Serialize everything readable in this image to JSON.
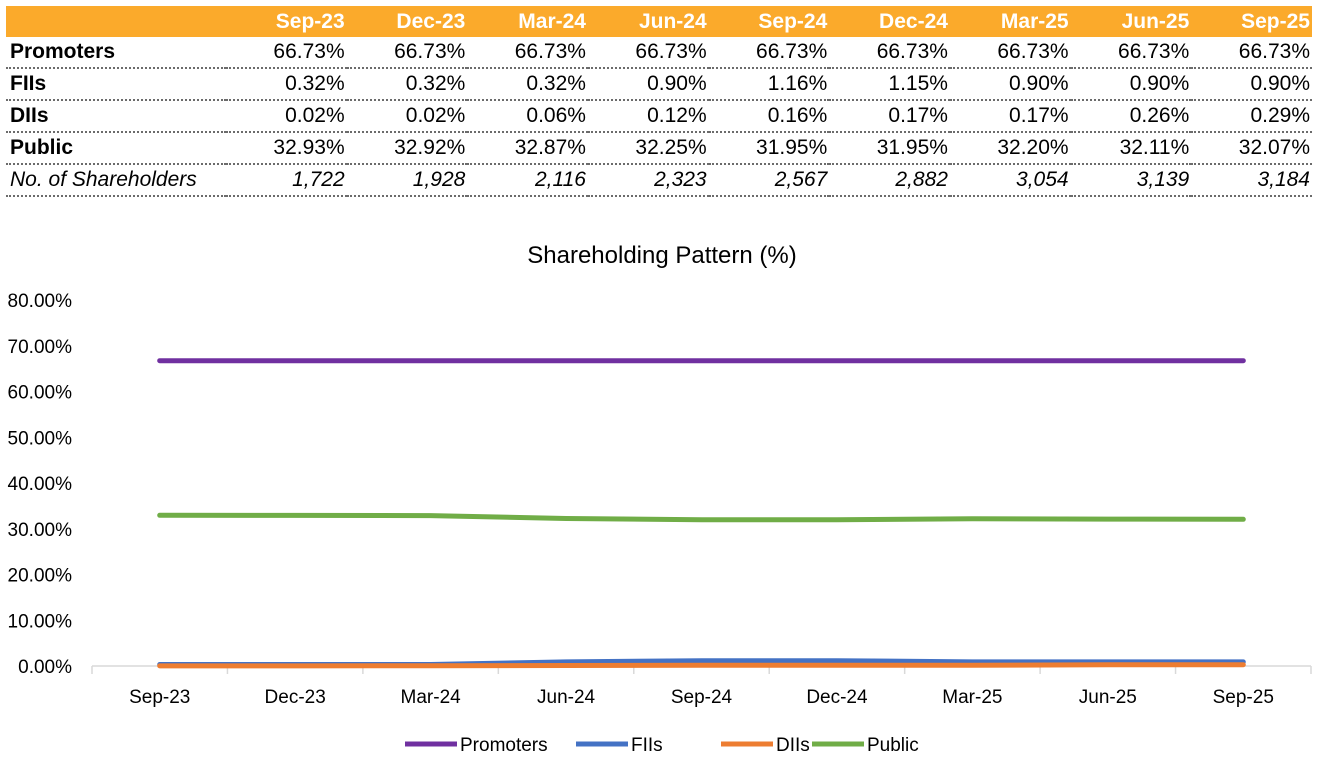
{
  "table": {
    "columns": [
      "Sep-23",
      "Dec-23",
      "Mar-24",
      "Jun-24",
      "Sep-24",
      "Dec-24",
      "Mar-25",
      "Jun-25",
      "Sep-25"
    ],
    "rows": [
      {
        "label": "Promoters",
        "values": [
          "66.73%",
          "66.73%",
          "66.73%",
          "66.73%",
          "66.73%",
          "66.73%",
          "66.73%",
          "66.73%",
          "66.73%"
        ],
        "italic": false
      },
      {
        "label": "FIIs",
        "values": [
          "0.32%",
          "0.32%",
          "0.32%",
          "0.90%",
          "1.16%",
          "1.15%",
          "0.90%",
          "0.90%",
          "0.90%"
        ],
        "italic": false
      },
      {
        "label": "DIIs",
        "values": [
          "0.02%",
          "0.02%",
          "0.06%",
          "0.12%",
          "0.16%",
          "0.17%",
          "0.17%",
          "0.26%",
          "0.29%"
        ],
        "italic": false
      },
      {
        "label": "Public",
        "values": [
          "32.93%",
          "32.92%",
          "32.87%",
          "32.25%",
          "31.95%",
          "31.95%",
          "32.20%",
          "32.11%",
          "32.07%"
        ],
        "italic": false
      },
      {
        "label": "No. of Shareholders",
        "values": [
          "1,722",
          "1,928",
          "2,116",
          "2,323",
          "2,567",
          "2,882",
          "3,054",
          "3,139",
          "3,184"
        ],
        "italic": true
      }
    ]
  },
  "chart_data": {
    "type": "line",
    "title": "Shareholding Pattern (%)",
    "categories": [
      "Sep-23",
      "Dec-23",
      "Mar-24",
      "Jun-24",
      "Sep-24",
      "Dec-24",
      "Mar-25",
      "Jun-25",
      "Sep-25"
    ],
    "ylim": [
      0,
      80
    ],
    "yticks": [
      0,
      10,
      20,
      30,
      40,
      50,
      60,
      70,
      80
    ],
    "ytick_labels": [
      "0.00%",
      "10.00%",
      "20.00%",
      "30.00%",
      "40.00%",
      "50.00%",
      "60.00%",
      "70.00%",
      "80.00%"
    ],
    "xlabel": "",
    "ylabel": "",
    "legend_position": "bottom",
    "series": [
      {
        "name": "Promoters",
        "color": "#7030A0",
        "values": [
          66.73,
          66.73,
          66.73,
          66.73,
          66.73,
          66.73,
          66.73,
          66.73,
          66.73
        ]
      },
      {
        "name": "FIIs",
        "color": "#4472C4",
        "values": [
          0.32,
          0.32,
          0.32,
          0.9,
          1.16,
          1.15,
          0.9,
          0.9,
          0.9
        ]
      },
      {
        "name": "DIIs",
        "color": "#ED7D31",
        "values": [
          0.02,
          0.02,
          0.06,
          0.12,
          0.16,
          0.17,
          0.17,
          0.26,
          0.29
        ]
      },
      {
        "name": "Public",
        "color": "#70AD47",
        "values": [
          32.93,
          32.92,
          32.87,
          32.25,
          31.95,
          31.95,
          32.2,
          32.11,
          32.07
        ]
      }
    ]
  }
}
